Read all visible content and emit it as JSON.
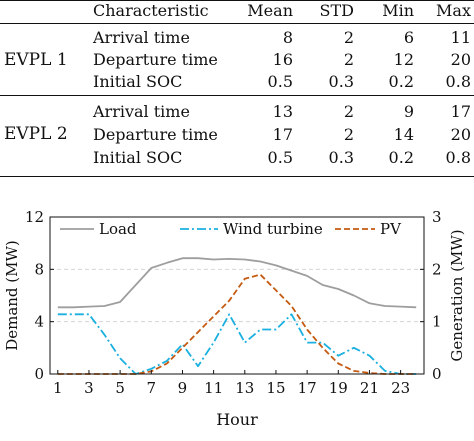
{
  "table": {
    "headers": [
      "Characteristic",
      "Mean",
      "STD",
      "Min",
      "Max"
    ],
    "groups": [
      {
        "name": "EVPL 1",
        "rows": [
          {
            "characteristic": "Arrival time",
            "mean": "8",
            "std": "2",
            "min": "6",
            "max": "11"
          },
          {
            "characteristic": "Departure time",
            "mean": "16",
            "std": "2",
            "min": "12",
            "max": "20"
          },
          {
            "characteristic": "Initial SOC",
            "mean": "0.5",
            "std": "0.3",
            "min": "0.2",
            "max": "0.8"
          }
        ]
      },
      {
        "name": "EVPL 2",
        "rows": [
          {
            "characteristic": "Arrival time",
            "mean": "13",
            "std": "2",
            "min": "9",
            "max": "17"
          },
          {
            "characteristic": "Departure time",
            "mean": "17",
            "std": "2",
            "min": "14",
            "max": "20"
          },
          {
            "characteristic": "Initial SOC",
            "mean": "0.5",
            "std": "0.3",
            "min": "0.2",
            "max": "0.8"
          }
        ]
      }
    ]
  },
  "chart_data": {
    "type": "line",
    "xlabel": "Hour",
    "ylabel_left": "Demand (MW)",
    "ylabel_right": "Generation (MW)",
    "xlim": [
      0.5,
      24.5
    ],
    "ylim_left": [
      0,
      12
    ],
    "ylim_right": [
      0,
      3
    ],
    "xticks": [
      1,
      3,
      5,
      7,
      9,
      11,
      13,
      15,
      17,
      19,
      21,
      23
    ],
    "yticks_left": [
      0,
      4,
      8,
      12
    ],
    "yticks_right": [
      0,
      1,
      2,
      3
    ],
    "grid": "horizontal dashed",
    "legend_position": "top",
    "x": [
      1,
      2,
      3,
      4,
      5,
      6,
      7,
      8,
      9,
      10,
      11,
      12,
      13,
      14,
      15,
      16,
      17,
      18,
      19,
      20,
      21,
      22,
      23,
      24
    ],
    "series": [
      {
        "name": "Load",
        "axis": "left",
        "color": "#9e9e9e",
        "style": "solid",
        "values": [
          5.1,
          5.1,
          5.15,
          5.2,
          5.5,
          6.8,
          8.1,
          8.5,
          8.85,
          8.85,
          8.75,
          8.8,
          8.75,
          8.6,
          8.3,
          7.9,
          7.5,
          6.8,
          6.5,
          6.0,
          5.4,
          5.2,
          5.15,
          5.1
        ]
      },
      {
        "name": "Wind turbine",
        "axis": "right",
        "color": "#1ab0e0",
        "style": "dashdot",
        "values": [
          1.14,
          1.14,
          1.14,
          0.75,
          0.3,
          0.0,
          0.1,
          0.25,
          0.57,
          0.15,
          0.6,
          1.14,
          0.6,
          0.85,
          0.85,
          1.14,
          0.6,
          0.6,
          0.35,
          0.5,
          0.35,
          0.06,
          0.0,
          0.0
        ]
      },
      {
        "name": "PV",
        "axis": "right",
        "color": "#c55a11",
        "style": "dashed",
        "values": [
          0,
          0,
          0,
          0,
          0,
          0,
          0.05,
          0.2,
          0.5,
          0.8,
          1.1,
          1.4,
          1.82,
          1.9,
          1.6,
          1.3,
          0.85,
          0.5,
          0.2,
          0.06,
          0.02,
          0,
          0,
          0
        ]
      }
    ]
  }
}
